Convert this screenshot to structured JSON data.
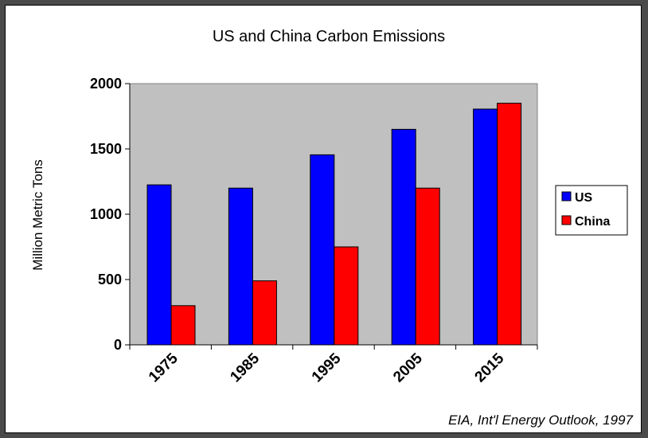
{
  "colors": {
    "page_background": "#4a4a4a",
    "plot_background": "#c0c0c0",
    "us": "#0000ff",
    "china": "#ff0000"
  },
  "chart_data": {
    "type": "bar",
    "title": "US and China Carbon Emissions",
    "xlabel": "",
    "ylabel": "Million Metric Tons",
    "categories": [
      "1975",
      "1985",
      "1995",
      "2005",
      "2015"
    ],
    "series": [
      {
        "name": "US",
        "color": "#0000ff",
        "values": [
          1225,
          1200,
          1455,
          1650,
          1805
        ]
      },
      {
        "name": "China",
        "color": "#ff0000",
        "values": [
          300,
          490,
          750,
          1200,
          1850
        ]
      }
    ],
    "ylim": [
      0,
      2000
    ],
    "yticks": [
      0,
      500,
      1000,
      1500,
      2000
    ],
    "grid": false,
    "legend_position": "right",
    "source": "EIA, Int'l Energy Outlook, 1997"
  }
}
